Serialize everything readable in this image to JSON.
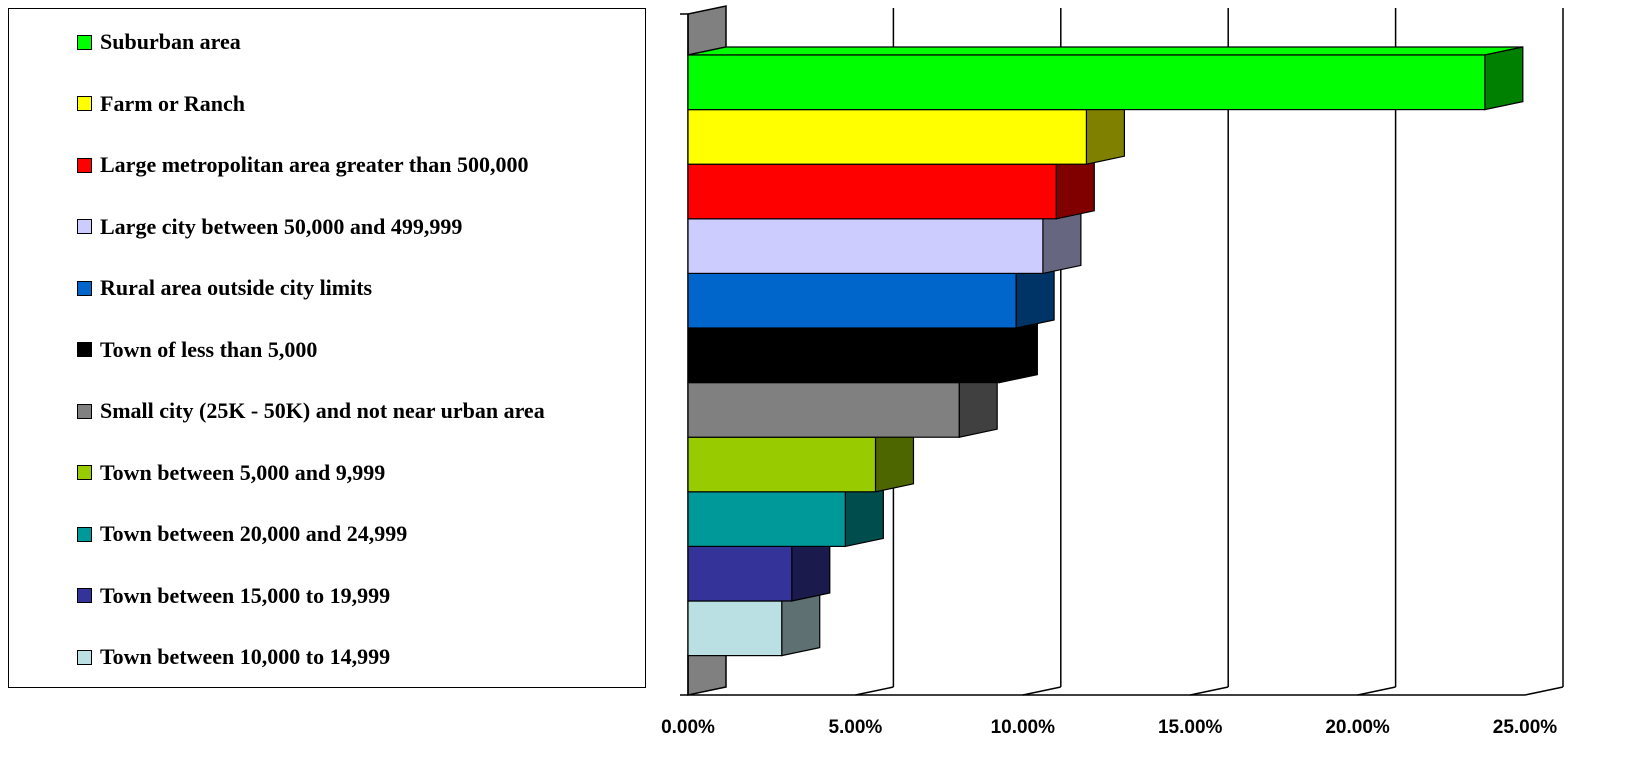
{
  "chart_data": {
    "type": "bar",
    "orientation": "horizontal",
    "three_d": true,
    "categories": [
      "Suburban area",
      "Farm or Ranch",
      "Large metropolitan area greater than 500,000",
      "Large city between 50,000 and 499,999",
      "Rural area outside city limits",
      "Town of less than 5,000",
      "Small city (25K - 50K) and not near urban area",
      "Town between 5,000 and 9,999",
      "Town between 20,000 and 24,999",
      "Town between 15,000 to 19,999",
      "Town between 10,000 to 14,999"
    ],
    "values": [
      23.8,
      11.9,
      11.0,
      10.6,
      9.8,
      9.3,
      8.1,
      5.6,
      4.7,
      3.1,
      2.8
    ],
    "colors": [
      "#00ff00",
      "#ffff00",
      "#ff0000",
      "#ccccff",
      "#0066cc",
      "#000000",
      "#808080",
      "#99cc00",
      "#009999",
      "#333399",
      "#bbe0e3"
    ],
    "side_colors": [
      "#008000",
      "#808000",
      "#800000",
      "#666680",
      "#003366",
      "#000000",
      "#404040",
      "#4d6600",
      "#004d4d",
      "#1a1a4d",
      "#5e7072"
    ],
    "xlim": [
      0,
      25
    ],
    "x_ticks": [
      "0.00%",
      "5.00%",
      "10.00%",
      "15.00%",
      "20.00%",
      "25.00%"
    ],
    "grid": true,
    "legend_position": "left",
    "title": "",
    "xlabel": "",
    "ylabel": ""
  }
}
